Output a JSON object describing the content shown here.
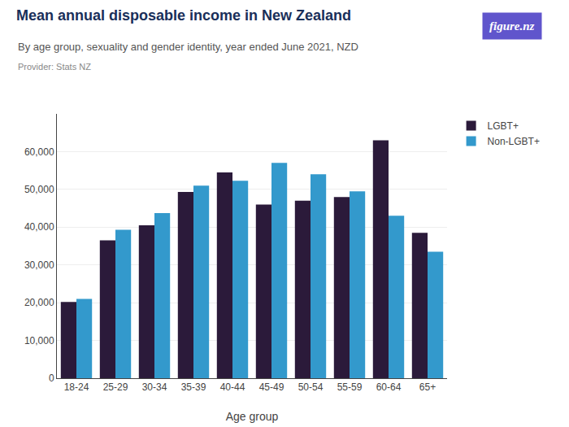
{
  "chart_data": {
    "type": "bar",
    "title": "Mean annual disposable income in New Zealand",
    "subtitle": "By age group, sexuality and gender identity, year ended June 2021, NZD",
    "annotations": [
      "Provider: Stats NZ",
      "figure.nz"
    ],
    "xlabel": "Age group",
    "categories": [
      "18-24",
      "25-29",
      "30-34",
      "35-39",
      "40-44",
      "45-49",
      "50-54",
      "55-59",
      "60-64",
      "65+"
    ],
    "series": [
      {
        "name": "LGBT+",
        "color": "#2b1a3a",
        "values": [
          20200,
          36500,
          40500,
          49300,
          54500,
          46000,
          47000,
          48000,
          63000,
          38500
        ]
      },
      {
        "name": "Non-LGBT+",
        "color": "#3399cc",
        "values": [
          21000,
          39300,
          43700,
          51000,
          52300,
          57000,
          54000,
          49500,
          43000,
          33500
        ]
      }
    ],
    "ylim": [
      0,
      70000
    ],
    "yticks": [
      0,
      {
        "value": 10000,
        "label": "10,000"
      },
      {
        "value": 20000,
        "label": "20,000"
      },
      {
        "value": 30000,
        "label": "30,000"
      },
      {
        "value": 40000,
        "label": "40,000"
      },
      {
        "value": 50000,
        "label": "50,000"
      },
      {
        "value": 60000,
        "label": "60,000"
      }
    ],
    "grid": true,
    "legend": "upper right"
  }
}
